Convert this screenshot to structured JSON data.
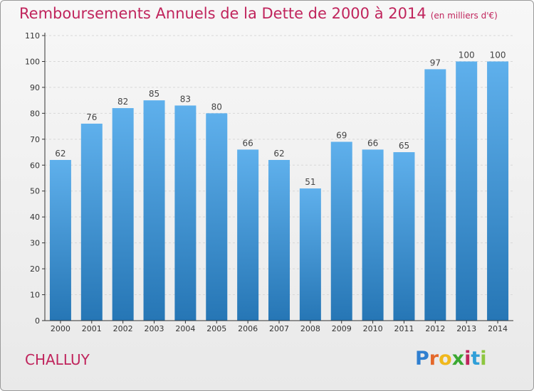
{
  "header": {
    "title": "Remboursements Annuels de la Dette de 2000 à 2014",
    "subtitle": "(en milliers d'€)"
  },
  "footer": {
    "commune": "CHALLUY",
    "logo_letters": [
      "P",
      "r",
      "o",
      "x",
      "i",
      "t",
      "i"
    ],
    "logo_colors": [
      "#2f7fd0",
      "#e4682a",
      "#f0b81c",
      "#3aa832",
      "#c0245c",
      "#2f9fd8",
      "#8dc63f"
    ]
  },
  "colors": {
    "bar_top": "#5fb0ec",
    "bar_bottom": "#2676b5",
    "grid": "#d8d8d8",
    "axis": "#333333",
    "accent": "#c0245c"
  },
  "chart_data": {
    "type": "bar",
    "title": "Remboursements Annuels de la Dette de 2000 à 2014",
    "subtitle": "(en milliers d'€)",
    "categories": [
      "2000",
      "2001",
      "2002",
      "2003",
      "2004",
      "2005",
      "2006",
      "2007",
      "2008",
      "2009",
      "2010",
      "2011",
      "2012",
      "2013",
      "2014"
    ],
    "values": [
      62,
      76,
      82,
      85,
      83,
      80,
      66,
      62,
      51,
      69,
      66,
      65,
      97,
      100,
      100
    ],
    "ylim": [
      0,
      110
    ],
    "yticks": [
      0,
      10,
      20,
      30,
      40,
      50,
      60,
      70,
      80,
      90,
      100,
      110
    ],
    "grid": true,
    "data_labels": true
  }
}
